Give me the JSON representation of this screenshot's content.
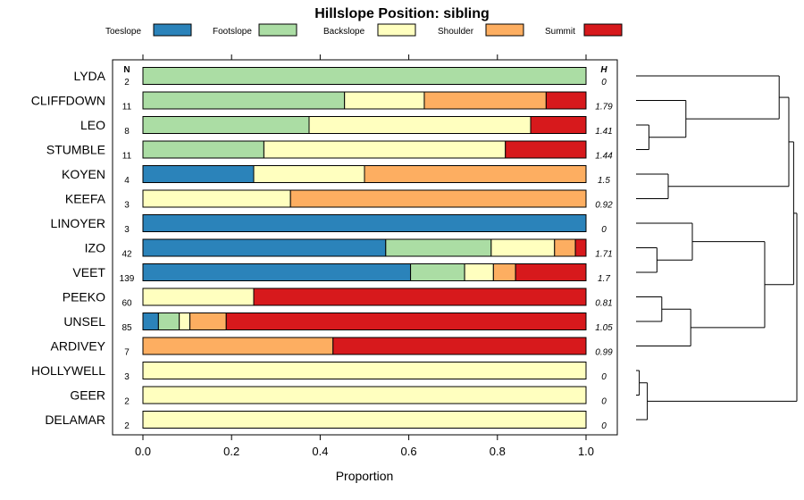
{
  "chart_data": {
    "type": "bar",
    "orientation": "horizontal",
    "stacked": true,
    "title": "Hillslope Position: sibling",
    "xlabel": "Proportion",
    "ylabel": "",
    "xlim": [
      0,
      1
    ],
    "xticks": [
      "0.0",
      "0.2",
      "0.4",
      "0.6",
      "0.8",
      "1.0"
    ],
    "n_header": "N",
    "h_header": "H",
    "legend_position": "top",
    "series": [
      {
        "name": "Toeslope",
        "color": "#2b83ba"
      },
      {
        "name": "Footslope",
        "color": "#abdda4"
      },
      {
        "name": "Backslope",
        "color": "#ffffbf"
      },
      {
        "name": "Shoulder",
        "color": "#fdae61"
      },
      {
        "name": "Summit",
        "color": "#d7191c"
      }
    ],
    "categories": [
      {
        "name": "LYDA",
        "n": "2",
        "h": "0",
        "values": [
          0,
          1,
          0,
          0,
          0
        ]
      },
      {
        "name": "CLIFFDOWN",
        "n": "11",
        "h": "1.79",
        "values": [
          0,
          0.455,
          0.18,
          0.275,
          0.09
        ]
      },
      {
        "name": "LEO",
        "n": "8",
        "h": "1.41",
        "values": [
          0,
          0.375,
          0.5,
          0,
          0.125
        ]
      },
      {
        "name": "STUMBLE",
        "n": "11",
        "h": "1.44",
        "values": [
          0,
          0.273,
          0.545,
          0,
          0.182
        ]
      },
      {
        "name": "KOYEN",
        "n": "4",
        "h": "1.5",
        "values": [
          0.25,
          0,
          0.25,
          0.5,
          0
        ]
      },
      {
        "name": "KEEFA",
        "n": "3",
        "h": "0.92",
        "values": [
          0,
          0,
          0.333,
          0.667,
          0
        ]
      },
      {
        "name": "LINOYER",
        "n": "3",
        "h": "0",
        "values": [
          1,
          0,
          0,
          0,
          0
        ]
      },
      {
        "name": "IZO",
        "n": "42",
        "h": "1.71",
        "values": [
          0.548,
          0.238,
          0.143,
          0.047,
          0.024
        ]
      },
      {
        "name": "VEET",
        "n": "139",
        "h": "1.7",
        "values": [
          0.604,
          0.122,
          0.065,
          0.05,
          0.159
        ]
      },
      {
        "name": "PEEKO",
        "n": "60",
        "h": "0.81",
        "values": [
          0,
          0,
          0.25,
          0,
          0.75
        ]
      },
      {
        "name": "UNSEL",
        "n": "85",
        "h": "1.05",
        "values": [
          0.035,
          0.047,
          0.024,
          0.082,
          0.812
        ]
      },
      {
        "name": "ARDIVEY",
        "n": "7",
        "h": "0.99",
        "values": [
          0,
          0,
          0,
          0.429,
          0.571
        ]
      },
      {
        "name": "HOLLYWELL",
        "n": "3",
        "h": "0",
        "values": [
          0,
          0,
          1,
          0,
          0
        ]
      },
      {
        "name": "GEER",
        "n": "2",
        "h": "0",
        "values": [
          0,
          0,
          1,
          0,
          0
        ]
      },
      {
        "name": "DELAMAR",
        "n": "2",
        "h": "0",
        "values": [
          0,
          0,
          1,
          0,
          0
        ]
      }
    ],
    "dendrogram": {
      "type": "hierarchical-clustering",
      "leaf_order": [
        "LYDA",
        "CLIFFDOWN",
        "LEO",
        "STUMBLE",
        "KOYEN",
        "KEEFA",
        "LINOYER",
        "IZO",
        "VEET",
        "PEEKO",
        "UNSEL",
        "ARDIVEY",
        "HOLLYWELL",
        "GEER",
        "DELAMAR"
      ],
      "merges": [
        {
          "a": "LEO",
          "b": "STUMBLE",
          "height": 0.08
        },
        {
          "a": "HOLLYWELL",
          "b": "GEER",
          "height": 0.02
        },
        {
          "a": "IZO",
          "b": "VEET",
          "height": 0.13
        },
        {
          "a": "PEEKO",
          "b": "UNSEL",
          "height": 0.16
        },
        {
          "a": "[HOLLYWELL,GEER]",
          "b": "DELAMAR",
          "height": 0.07
        },
        {
          "a": "KOYEN",
          "b": "KEEFA",
          "height": 0.2
        },
        {
          "a": "LINOYER",
          "b": "[IZO,VEET]",
          "height": 0.35
        },
        {
          "a": "CLIFFDOWN",
          "b": "[LEO,STUMBLE]",
          "height": 0.31
        },
        {
          "a": "[PEEKO,UNSEL]",
          "b": "ARDIVEY",
          "height": 0.34
        },
        {
          "a": "[LINOYER,IZO,VEET]",
          "b": "[PEEKO,UNSEL,ARDIVEY]",
          "height": 0.8
        },
        {
          "a": "LYDA",
          "b": "[CLIFFDOWN,LEO,STUMBLE]",
          "height": 0.89
        },
        {
          "a": "[LYDA..STUMBLE]",
          "b": "[KOYEN,KEEFA]",
          "height": 0.95
        },
        {
          "a": "[LYDA..KEEFA]",
          "b": "[LINOYER..ARDIVEY]",
          "height": 0.98
        },
        {
          "a": "[LYDA..ARDIVEY]",
          "b": "[HOLLYWELL,GEER,DELAMAR]",
          "height": 1.0
        }
      ]
    }
  }
}
